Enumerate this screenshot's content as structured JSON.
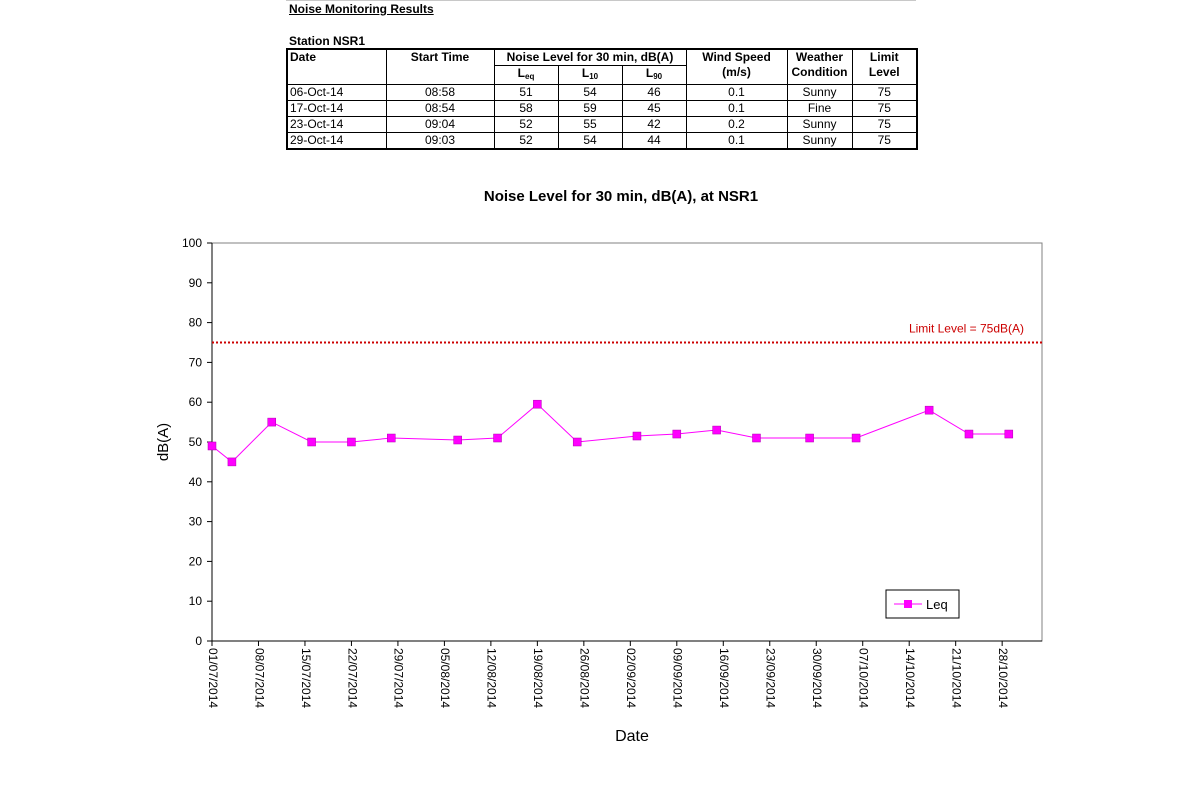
{
  "report": {
    "title": "Noise Monitoring Results",
    "station": "Station NSR1"
  },
  "table": {
    "headers": {
      "date": "Date",
      "start_time": "Start Time",
      "noise_level": "Noise Level for 30 min, dB(A)",
      "leq_main": "L",
      "leq_sub": "eq",
      "l10_main": "L",
      "l10_sub": "10",
      "l90_main": "L",
      "l90_sub": "90",
      "wind_speed_1": "Wind Speed",
      "wind_speed_2": "(m/s)",
      "weather_1": "Weather",
      "weather_2": "Condition",
      "limit_1": "Limit",
      "limit_2": "Level"
    },
    "rows": [
      {
        "date": "06-Oct-14",
        "start_time": "08:58",
        "leq": "51",
        "l10": "54",
        "l90": "46",
        "wind": "0.1",
        "weather": "Sunny",
        "limit": "75"
      },
      {
        "date": "17-Oct-14",
        "start_time": "08:54",
        "leq": "58",
        "l10": "59",
        "l90": "45",
        "wind": "0.1",
        "weather": "Fine",
        "limit": "75"
      },
      {
        "date": "23-Oct-14",
        "start_time": "09:04",
        "leq": "52",
        "l10": "55",
        "l90": "42",
        "wind": "0.2",
        "weather": "Sunny",
        "limit": "75"
      },
      {
        "date": "29-Oct-14",
        "start_time": "09:03",
        "leq": "52",
        "l10": "54",
        "l90": "44",
        "wind": "0.1",
        "weather": "Sunny",
        "limit": "75"
      }
    ]
  },
  "chart_data": {
    "type": "line",
    "title": "Noise Level for 30 min, dB(A), at NSR1",
    "xlabel": "Date",
    "ylabel": "dB(A)",
    "ylim": [
      0,
      100
    ],
    "yticks": [
      0,
      10,
      20,
      30,
      40,
      50,
      60,
      70,
      80,
      90,
      100
    ],
    "xlim": [
      "2014-07-01",
      "2014-11-03"
    ],
    "xticks": [
      "01/07/2014",
      "08/07/2014",
      "15/07/2014",
      "22/07/2014",
      "29/07/2014",
      "05/08/2014",
      "12/08/2014",
      "19/08/2014",
      "26/08/2014",
      "02/09/2014",
      "09/09/2014",
      "16/09/2014",
      "23/09/2014",
      "30/09/2014",
      "07/10/2014",
      "14/10/2014",
      "21/10/2014",
      "28/10/2014"
    ],
    "grid": false,
    "legend": "bottom-right",
    "series": [
      {
        "name": "Leq",
        "color": "#ff00ff",
        "x": [
          "2014-07-01",
          "2014-07-04",
          "2014-07-10",
          "2014-07-16",
          "2014-07-22",
          "2014-07-28",
          "2014-08-07",
          "2014-08-13",
          "2014-08-19",
          "2014-08-25",
          "2014-09-03",
          "2014-09-09",
          "2014-09-15",
          "2014-09-21",
          "2014-09-29",
          "2014-10-06",
          "2014-10-17",
          "2014-10-23",
          "2014-10-29"
        ],
        "y": [
          49,
          45,
          55,
          50,
          50,
          51,
          50.5,
          51,
          59.5,
          50,
          51.5,
          52,
          53,
          51,
          51,
          51,
          58,
          52,
          52
        ]
      }
    ],
    "limit_line": {
      "value": 75,
      "label": "Limit Level  = 75dB(A)",
      "color": "#cc0000"
    }
  }
}
